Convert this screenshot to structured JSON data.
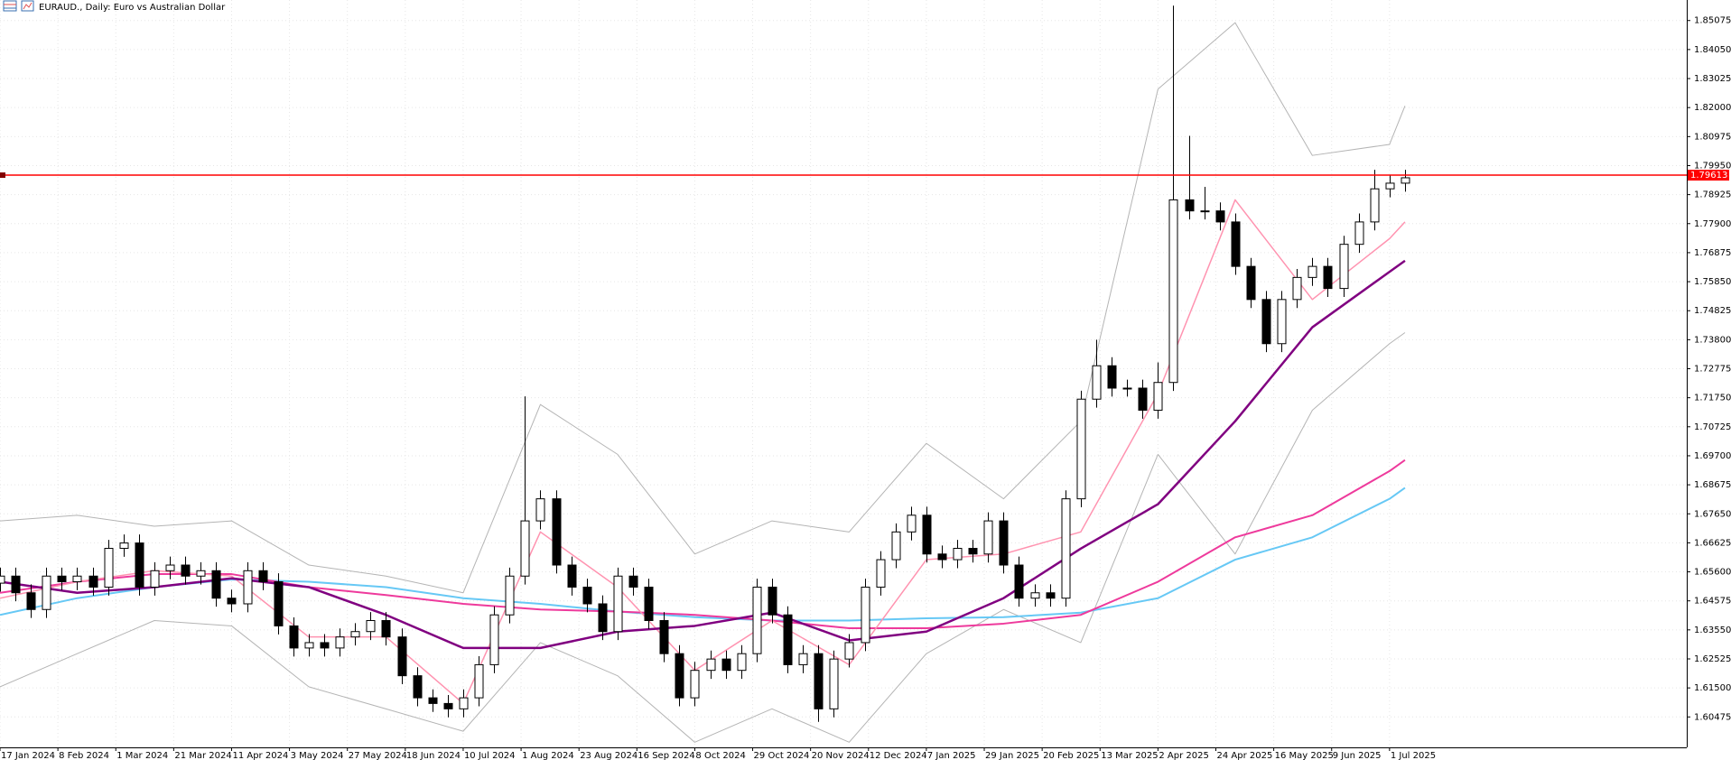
{
  "chart_data": {
    "type": "candlestick",
    "title": "EURAUD., Daily: Euro vs Australian Dollar",
    "grid": true,
    "xlim": [
      0,
      437
    ],
    "ylim": [
      1.594,
      1.858
    ],
    "xticks": [
      {
        "value": 0,
        "label": "17 Jan 2024"
      },
      {
        "value": 15,
        "label": "8 Feb 2024"
      },
      {
        "value": 30,
        "label": "1 Mar 2024"
      },
      {
        "value": 45,
        "label": "21 Mar 2024"
      },
      {
        "value": 60,
        "label": "11 Apr 2024"
      },
      {
        "value": 75,
        "label": "3 May 2024"
      },
      {
        "value": 90,
        "label": "27 May 2024"
      },
      {
        "value": 105,
        "label": "18 Jun 2024"
      },
      {
        "value": 120,
        "label": "10 Jul 2024"
      },
      {
        "value": 135,
        "label": "1 Aug 2024"
      },
      {
        "value": 150,
        "label": "23 Aug 2024"
      },
      {
        "value": 165,
        "label": "16 Sep 2024"
      },
      {
        "value": 180,
        "label": "8 Oct 2024"
      },
      {
        "value": 195,
        "label": "29 Oct 2024"
      },
      {
        "value": 210,
        "label": "20 Nov 2024"
      },
      {
        "value": 225,
        "label": "12 Dec 2024"
      },
      {
        "value": 240,
        "label": "7 Jan 2025"
      },
      {
        "value": 255,
        "label": "29 Jan 2025"
      },
      {
        "value": 270,
        "label": "20 Feb 2025"
      },
      {
        "value": 285,
        "label": "13 Mar 2025"
      },
      {
        "value": 300,
        "label": "2 Apr 2025"
      },
      {
        "value": 315,
        "label": "24 Apr 2025"
      },
      {
        "value": 330,
        "label": "16 May 2025"
      },
      {
        "value": 345,
        "label": "9 Jun 2025"
      },
      {
        "value": 360,
        "label": "1 Jul 2025"
      }
    ],
    "yticks": [
      1.85075,
      {
        "value": 1.8405,
        "label": "1.84050"
      },
      1.83025,
      {
        "value": 1.82,
        "label": "1.82000"
      },
      1.80975,
      {
        "value": 1.7995,
        "label": "1.79950"
      },
      1.78925,
      {
        "value": 1.779,
        "label": "1.77900"
      },
      1.76875,
      {
        "value": 1.7585,
        "label": "1.75850"
      },
      1.74825,
      {
        "value": 1.738,
        "label": "1.73800"
      },
      1.72775,
      {
        "value": 1.7175,
        "label": "1.71750"
      },
      1.70725,
      {
        "value": 1.697,
        "label": "1.69700"
      },
      1.68675,
      {
        "value": 1.6765,
        "label": "1.67650"
      },
      1.66625,
      {
        "value": 1.656,
        "label": "1.65600"
      },
      1.64575,
      {
        "value": 1.6355,
        "label": "1.63550"
      },
      1.62525,
      {
        "value": 1.615,
        "label": "1.61500"
      },
      1.60475
    ],
    "current_price": 1.79613,
    "current_price_color": "#ff0000",
    "candles": {
      "x": [
        0,
        4,
        8,
        12,
        16,
        20,
        24,
        28,
        32,
        36,
        40,
        44,
        48,
        52,
        56,
        60,
        64,
        68,
        72,
        76,
        80,
        84,
        88,
        92,
        96,
        100,
        104,
        108,
        112,
        116,
        120,
        124,
        128,
        132,
        136,
        140,
        144,
        148,
        152,
        156,
        160,
        164,
        168,
        172,
        176,
        180,
        184,
        188,
        192,
        196,
        200,
        204,
        208,
        212,
        216,
        220,
        224,
        228,
        232,
        236,
        240,
        244,
        248,
        252,
        256,
        260,
        264,
        268,
        272,
        276,
        280,
        284,
        288,
        292,
        296,
        300,
        304,
        308,
        312,
        316,
        320,
        324,
        328,
        332,
        336,
        340,
        344,
        348,
        352,
        356,
        360,
        364
      ],
      "open": [
        1.652,
        1.6545,
        1.6486,
        1.6427,
        1.6545,
        1.6525,
        1.6545,
        1.6506,
        1.6643,
        1.6662,
        1.6506,
        1.6564,
        1.6584,
        1.6545,
        1.6564,
        1.6467,
        1.6447,
        1.6564,
        1.6525,
        1.6369,
        1.6291,
        1.631,
        1.6291,
        1.633,
        1.6349,
        1.6388,
        1.633,
        1.6193,
        1.6115,
        1.6095,
        1.6076,
        1.6115,
        1.6232,
        1.6408,
        1.6545,
        1.674,
        1.6818,
        1.6584,
        1.6506,
        1.6447,
        1.6349,
        1.6545,
        1.6506,
        1.6388,
        1.6271,
        1.6115,
        1.6212,
        1.6252,
        1.6212,
        1.6271,
        1.6506,
        1.6408,
        1.6232,
        1.6271,
        1.6076,
        1.6252,
        1.631,
        1.6506,
        1.6603,
        1.6701,
        1.676,
        1.6623,
        1.6603,
        1.6643,
        1.6623,
        1.674,
        1.6584,
        1.6467,
        1.6486,
        1.6467,
        1.6818,
        1.717,
        1.7288,
        1.7209,
        1.7209,
        1.7131,
        1.7229,
        1.7874,
        1.7835,
        1.7835,
        1.7796,
        1.7639,
        1.7522,
        1.7366,
        1.7522,
        1.76,
        1.7639,
        1.7561,
        1.7717,
        1.7796,
        1.7913,
        1.7933
      ],
      "high": [
        1.6575,
        1.6575,
        1.6516,
        1.6575,
        1.6575,
        1.6575,
        1.6575,
        1.6673,
        1.6692,
        1.6692,
        1.6594,
        1.6614,
        1.6614,
        1.6594,
        1.6594,
        1.6497,
        1.6594,
        1.6594,
        1.6555,
        1.6399,
        1.634,
        1.634,
        1.636,
        1.6379,
        1.6418,
        1.6418,
        1.636,
        1.6223,
        1.6145,
        1.6125,
        1.6145,
        1.6262,
        1.6438,
        1.6575,
        1.718,
        1.6848,
        1.6848,
        1.6614,
        1.6536,
        1.6477,
        1.6575,
        1.6575,
        1.6536,
        1.6418,
        1.6301,
        1.6242,
        1.6282,
        1.6282,
        1.6301,
        1.6536,
        1.6536,
        1.6438,
        1.6301,
        1.6301,
        1.6282,
        1.634,
        1.6536,
        1.6633,
        1.6731,
        1.679,
        1.679,
        1.6653,
        1.6673,
        1.6673,
        1.677,
        1.677,
        1.6614,
        1.6516,
        1.6516,
        1.6848,
        1.72,
        1.738,
        1.7318,
        1.7239,
        1.7239,
        1.73,
        1.856,
        1.81,
        1.792,
        1.7865,
        1.7826,
        1.7669,
        1.7552,
        1.7552,
        1.763,
        1.7669,
        1.7669,
        1.7747,
        1.7826,
        1.798,
        1.7963,
        1.798
      ],
      "low": [
        1.649,
        1.6456,
        1.6397,
        1.6397,
        1.6495,
        1.6495,
        1.6476,
        1.6476,
        1.6613,
        1.6476,
        1.6476,
        1.6534,
        1.6515,
        1.6515,
        1.6437,
        1.6417,
        1.6417,
        1.6495,
        1.6339,
        1.6261,
        1.6261,
        1.6261,
        1.6261,
        1.63,
        1.6319,
        1.63,
        1.6163,
        1.6085,
        1.6065,
        1.6046,
        1.6046,
        1.6085,
        1.6202,
        1.6378,
        1.6515,
        1.671,
        1.6554,
        1.6476,
        1.6417,
        1.6319,
        1.6319,
        1.6476,
        1.6358,
        1.6241,
        1.6085,
        1.6085,
        1.6182,
        1.6182,
        1.6182,
        1.6241,
        1.6378,
        1.6202,
        1.6202,
        1.603,
        1.6046,
        1.6222,
        1.628,
        1.6476,
        1.6573,
        1.6671,
        1.6593,
        1.6573,
        1.6573,
        1.6593,
        1.6593,
        1.6554,
        1.6437,
        1.6437,
        1.6437,
        1.6437,
        1.6788,
        1.714,
        1.7179,
        1.7179,
        1.7101,
        1.7101,
        1.7199,
        1.7805,
        1.7805,
        1.7766,
        1.7609,
        1.7492,
        1.7336,
        1.7336,
        1.7492,
        1.757,
        1.7531,
        1.7531,
        1.7687,
        1.7766,
        1.7883,
        1.7903
      ],
      "close": [
        1.6545,
        1.6486,
        1.6427,
        1.6545,
        1.6525,
        1.6545,
        1.6506,
        1.6643,
        1.6662,
        1.6506,
        1.6564,
        1.6584,
        1.6545,
        1.6564,
        1.6467,
        1.6447,
        1.6564,
        1.6525,
        1.6369,
        1.6291,
        1.631,
        1.6291,
        1.633,
        1.6349,
        1.6388,
        1.633,
        1.6193,
        1.6115,
        1.6095,
        1.6076,
        1.6115,
        1.6232,
        1.6408,
        1.6545,
        1.674,
        1.6818,
        1.6584,
        1.6506,
        1.6447,
        1.6349,
        1.6545,
        1.6506,
        1.6388,
        1.6271,
        1.6115,
        1.6212,
        1.6252,
        1.6212,
        1.6271,
        1.6506,
        1.6408,
        1.6232,
        1.6271,
        1.6076,
        1.6252,
        1.631,
        1.6506,
        1.6603,
        1.6701,
        1.676,
        1.6623,
        1.6603,
        1.6643,
        1.6623,
        1.674,
        1.6584,
        1.6467,
        1.6486,
        1.6467,
        1.6818,
        1.717,
        1.7288,
        1.7209,
        1.7209,
        1.7131,
        1.7229,
        1.7874,
        1.7835,
        1.7835,
        1.7796,
        1.7639,
        1.7522,
        1.7366,
        1.7522,
        1.76,
        1.7639,
        1.7561,
        1.7717,
        1.7796,
        1.7913,
        1.7933,
        1.7952
      ],
      "up_color": "#ffffff",
      "down_color": "#000000",
      "edge_color": "#000000"
    },
    "lines": {
      "x": [
        0,
        20,
        40,
        60,
        80,
        100,
        120,
        140,
        160,
        180,
        200,
        220,
        240,
        260,
        280,
        300,
        320,
        340,
        360,
        364
      ],
      "series": [
        {
          "color": "#b4b4b4",
          "line_width": 1,
          "values": [
            1.674,
            1.676,
            1.6721,
            1.674,
            1.6584,
            1.6545,
            1.6486,
            1.7151,
            1.6975,
            1.6623,
            1.674,
            1.6701,
            1.7014,
            1.6818,
            1.7092,
            1.8265,
            1.85,
            1.8031,
            1.807,
            1.8206
          ]
        },
        {
          "color": "#b4b4b4",
          "line_width": 1,
          "values": [
            1.6154,
            1.6271,
            1.6388,
            1.6369,
            1.6154,
            1.6076,
            1.5997,
            1.631,
            1.6193,
            1.5958,
            1.6076,
            1.5958,
            1.6271,
            1.6427,
            1.631,
            1.6975,
            1.6623,
            1.7131,
            1.7366,
            1.7405
          ]
        },
        {
          "color": "#66c8f5",
          "line_width": 2,
          "values": [
            1.6408,
            1.6467,
            1.6506,
            1.6533,
            1.6525,
            1.6506,
            1.6467,
            1.6447,
            1.642,
            1.64,
            1.6388,
            1.6388,
            1.6396,
            1.64,
            1.6416,
            1.6467,
            1.6603,
            1.6682,
            1.6818,
            1.6857
          ]
        },
        {
          "color": "#ee3a9c",
          "line_width": 2,
          "values": [
            1.6486,
            1.6525,
            1.6552,
            1.6552,
            1.6506,
            1.6478,
            1.6447,
            1.6427,
            1.642,
            1.6408,
            1.6388,
            1.6361,
            1.6361,
            1.6377,
            1.6408,
            1.6525,
            1.6682,
            1.676,
            1.6916,
            1.6955
          ]
        },
        {
          "color": "#ff93b0",
          "line_width": 1.5,
          "values": [
            1.6467,
            1.6525,
            1.6564,
            1.6545,
            1.633,
            1.633,
            1.6095,
            1.6701,
            1.6506,
            1.6212,
            1.6388,
            1.6232,
            1.6603,
            1.6623,
            1.6701,
            1.719,
            1.7874,
            1.7522,
            1.7737,
            1.7796
          ]
        },
        {
          "color": "#800080",
          "line_width": 2.5,
          "values": [
            1.6525,
            1.6486,
            1.6506,
            1.6537,
            1.6506,
            1.6408,
            1.6291,
            1.6291,
            1.6349,
            1.6369,
            1.6416,
            1.6318,
            1.6349,
            1.6467,
            1.6642,
            1.6799,
            1.7092,
            1.7424,
            1.762,
            1.7659
          ]
        }
      ]
    }
  }
}
